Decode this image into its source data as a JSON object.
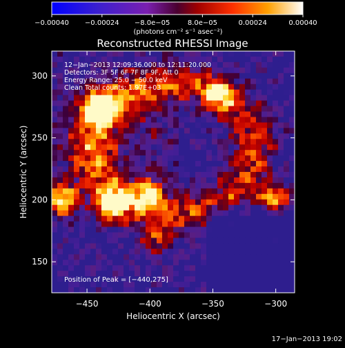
{
  "chart_data": {
    "type": "heatmap",
    "title": "Reconstructed RHESSI Image",
    "xlabel": "Heliocentric X (arcsec)",
    "ylabel": "Heliocentric Y (arcsec)",
    "xlim": [
      -478,
      -285
    ],
    "ylim": [
      125,
      320
    ],
    "x_ticks": [
      {
        "value": -450,
        "label": "−450"
      },
      {
        "value": -400,
        "label": "−400"
      },
      {
        "value": -350,
        "label": "−350"
      },
      {
        "value": -300,
        "label": "−300"
      }
    ],
    "y_ticks": [
      {
        "value": 150,
        "label": "150"
      },
      {
        "value": 200,
        "label": "200"
      },
      {
        "value": 250,
        "label": "250"
      },
      {
        "value": 300,
        "label": "300"
      }
    ],
    "colorbar": {
      "range": [
        -0.0004,
        0.0004
      ],
      "units": "(photons cm⁻² s⁻¹ asec⁻²)",
      "ticks": [
        {
          "value": -0.0004,
          "label": "−0.00040"
        },
        {
          "value": -0.00024,
          "label": "−0.00024"
        },
        {
          "value": -8e-05,
          "label": "−8.0e−05"
        },
        {
          "value": 8e-05,
          "label": "8.0e−05"
        },
        {
          "value": 0.00024,
          "label": "0.00024"
        },
        {
          "value": 0.0004,
          "label": "0.00040"
        }
      ]
    },
    "info_lines": [
      "12−Jan−2013 12:09:36.000 to 12:11:20.000",
      "Detectors: 3F 5F 6F 7F 8F 9F, Att 0",
      "Energy Range: 25.0 − 50.0 keV",
      "Clean    Total counts: 1.97E+03"
    ],
    "peak_label": "Position of Peak = [−440,275]",
    "peak": [
      -440,
      275
    ],
    "hot_spots": [
      {
        "x": -470,
        "y": 200,
        "level": 0.95
      },
      {
        "x": -440,
        "y": 275,
        "level": 1.0
      },
      {
        "x": -430,
        "y": 195,
        "level": 0.85
      },
      {
        "x": -402,
        "y": 205,
        "level": 0.75
      },
      {
        "x": -300,
        "y": 200,
        "level": 0.85
      },
      {
        "x": -345,
        "y": 285,
        "level": 0.6
      },
      {
        "x": -395,
        "y": 168,
        "level": 0.55
      }
    ]
  },
  "footer": {
    "timestamp": "17−Jan−2013 19:02"
  }
}
